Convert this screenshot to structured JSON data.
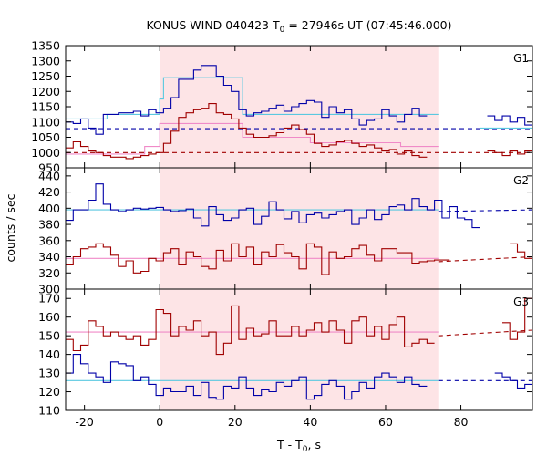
{
  "chart_data": {
    "type": "line",
    "title": "KONUS-WIND 040423 T",
    "title_sub": "0",
    "title_tail": " = 27946s UT (07:45:46.000)",
    "xlabel": "T - T",
    "xlabel_sub": "0",
    "xlabel_tail": ", s",
    "ylabel": "counts / sec",
    "xlim": [
      -25,
      99
    ],
    "xticks": [
      -20,
      0,
      20,
      40,
      60,
      80
    ],
    "shaded_interval": [
      0,
      74
    ],
    "shade_color": "#fde4e6",
    "colors": {
      "blue_curve": "#0000a8",
      "red_curve": "#a00000",
      "blue_fit": "#5ac8e0",
      "red_fit": "#f08ac8"
    },
    "panels": [
      {
        "label": "G1",
        "ylim": [
          950,
          1350
        ],
        "yticks": [
          950,
          1000,
          1050,
          1100,
          1150,
          1200,
          1250,
          1300,
          1350
        ],
        "series": [
          {
            "color": "blue",
            "bin_start": -25,
            "bin_width": 2,
            "values": [
              1100,
              1095,
              1110,
              1080,
              1060,
              1125,
              1125,
              1130,
              1130,
              1135,
              1120,
              1140,
              1130,
              1145,
              1180,
              1240,
              1240,
              1270,
              1285,
              1285,
              1250,
              1220,
              1200,
              1140,
              1120,
              1130,
              1135,
              1145,
              1155,
              1135,
              1150,
              1160,
              1170,
              1165,
              1115,
              1150,
              1130,
              1140,
              1110,
              1090,
              1105,
              1110,
              1140,
              1120,
              1100,
              1125,
              1145,
              1120,
              null,
              null,
              null,
              null,
              null,
              null,
              null,
              null,
              1120,
              1105,
              1120,
              1100,
              1115,
              1090
            ]
          },
          {
            "color": "red",
            "bin_start": -25,
            "bin_width": 2,
            "values": [
              1015,
              1035,
              1020,
              1005,
              1000,
              990,
              985,
              985,
              980,
              985,
              990,
              995,
              1000,
              1030,
              1070,
              1115,
              1130,
              1140,
              1145,
              1160,
              1130,
              1125,
              1110,
              1080,
              1060,
              1050,
              1050,
              1055,
              1065,
              1080,
              1090,
              1075,
              1060,
              1030,
              1020,
              1025,
              1035,
              1040,
              1030,
              1020,
              1025,
              1015,
              1005,
              1010,
              995,
              1005,
              990,
              985,
              null,
              null,
              null,
              null,
              null,
              null,
              null,
              null,
              1005,
              1000,
              990,
              1005,
              995,
              1005
            ]
          }
        ],
        "fit_segments": [
          {
            "color": "blue_fit",
            "style": "solid",
            "points": [
              [
                -25,
                1110
              ],
              [
                -14,
                1110
              ],
              [
                -14,
                1125
              ],
              [
                0,
                1125
              ],
              [
                0,
                1175
              ],
              [
                1,
                1175
              ],
              [
                1,
                1245
              ],
              [
                22,
                1245
              ],
              [
                22,
                1125
              ],
              [
                74,
                1125
              ]
            ]
          },
          {
            "color": "red_fit",
            "style": "solid",
            "points": [
              [
                -25,
                995
              ],
              [
                -4,
                995
              ],
              [
                -4,
                1020
              ],
              [
                0,
                1020
              ],
              [
                0,
                1095
              ],
              [
                22,
                1095
              ],
              [
                22,
                1050
              ],
              [
                40,
                1050
              ],
              [
                40,
                1032
              ],
              [
                64,
                1032
              ],
              [
                64,
                1020
              ],
              [
                74,
                1020
              ]
            ]
          },
          {
            "color": "blue_curve",
            "style": "dashed",
            "points": [
              [
                -25,
                1078
              ],
              [
                99,
                1078
              ]
            ]
          },
          {
            "color": "red_curve",
            "style": "dashed",
            "points": [
              [
                -25,
                1000
              ],
              [
                99,
                1000
              ]
            ]
          },
          {
            "color": "blue_fit",
            "style": "solid",
            "points": [
              [
                85,
                1080
              ],
              [
                99,
                1080
              ]
            ]
          }
        ]
      },
      {
        "label": "G2",
        "ylim": [
          300,
          450
        ],
        "yticks": [
          300,
          320,
          340,
          360,
          380,
          400,
          420,
          440
        ],
        "series": [
          {
            "color": "blue",
            "bin_start": -25,
            "bin_width": 2,
            "values": [
              385,
              398,
              398,
              410,
              430,
              405,
              398,
              396,
              398,
              400,
              399,
              400,
              401,
              398,
              396,
              397,
              399,
              388,
              378,
              402,
              392,
              385,
              388,
              398,
              400,
              380,
              390,
              408,
              398,
              387,
              396,
              382,
              392,
              394,
              388,
              392,
              396,
              398,
              380,
              388,
              398,
              386,
              392,
              402,
              404,
              398,
              412,
              402,
              398,
              410,
              388,
              402,
              388,
              386,
              376,
              null,
              null,
              null,
              null,
              null,
              null,
              null
            ]
          },
          {
            "color": "red",
            "bin_start": -25,
            "bin_width": 2,
            "values": [
              330,
              340,
              350,
              352,
              356,
              352,
              342,
              328,
              335,
              320,
              322,
              338,
              335,
              345,
              350,
              330,
              346,
              340,
              328,
              325,
              348,
              335,
              356,
              340,
              352,
              330,
              346,
              340,
              355,
              345,
              340,
              325,
              356,
              352,
              318,
              346,
              338,
              340,
              350,
              354,
              342,
              335,
              350,
              350,
              345,
              345,
              332,
              334,
              335,
              336,
              336,
              null,
              null,
              null,
              null,
              null,
              null,
              null,
              null,
              356,
              346,
              338
            ]
          }
        ],
        "fit_segments": [
          {
            "color": "blue_fit",
            "style": "solid",
            "points": [
              [
                -25,
                398
              ],
              [
                74,
                398
              ]
            ]
          },
          {
            "color": "red_fit",
            "style": "solid",
            "points": [
              [
                -25,
                338
              ],
              [
                74,
                338
              ]
            ]
          },
          {
            "color": "blue_curve",
            "style": "dashed",
            "points": [
              [
                74,
                396
              ],
              [
                99,
                398
              ]
            ]
          },
          {
            "color": "red_curve",
            "style": "dashed",
            "points": [
              [
                74,
                334
              ],
              [
                99,
                340
              ]
            ]
          }
        ]
      },
      {
        "label": "G3",
        "ylim": [
          110,
          175
        ],
        "yticks": [
          110,
          120,
          130,
          140,
          150,
          160,
          170
        ],
        "series": [
          {
            "color": "blue",
            "bin_start": -25,
            "bin_width": 2,
            "values": [
              130,
              140,
              135,
              130,
              128,
              125,
              136,
              135,
              134,
              126,
              128,
              124,
              118,
              122,
              120,
              120,
              123,
              118,
              125,
              117,
              116,
              123,
              122,
              128,
              122,
              118,
              121,
              120,
              125,
              123,
              126,
              128,
              116,
              118,
              124,
              126,
              123,
              116,
              120,
              125,
              122,
              128,
              130,
              128,
              125,
              128,
              124,
              123,
              null,
              null,
              null,
              null,
              null,
              null,
              null,
              null,
              null,
              130,
              128,
              126,
              122,
              124
            ]
          },
          {
            "color": "red",
            "bin_start": -25,
            "bin_width": 2,
            "values": [
              148,
              142,
              145,
              158,
              155,
              150,
              152,
              150,
              148,
              150,
              145,
              148,
              164,
              162,
              150,
              155,
              153,
              158,
              150,
              152,
              140,
              146,
              166,
              148,
              154,
              150,
              151,
              158,
              150,
              150,
              155,
              150,
              153,
              157,
              152,
              158,
              153,
              146,
              158,
              160,
              150,
              155,
              148,
              156,
              160,
              144,
              146,
              148,
              146,
              null,
              null,
              null,
              null,
              null,
              null,
              null,
              null,
              null,
              157,
              148,
              152,
              170
            ]
          }
        ],
        "fit_segments": [
          {
            "color": "blue_fit",
            "style": "solid",
            "points": [
              [
                -25,
                126
              ],
              [
                74,
                126
              ]
            ]
          },
          {
            "color": "red_fit",
            "style": "solid",
            "points": [
              [
                -25,
                152
              ],
              [
                74,
                152
              ]
            ]
          },
          {
            "color": "blue_curve",
            "style": "dashed",
            "points": [
              [
                74,
                126
              ],
              [
                99,
                126
              ]
            ]
          },
          {
            "color": "red_curve",
            "style": "dashed",
            "points": [
              [
                74,
                150
              ],
              [
                99,
                153
              ]
            ]
          }
        ]
      }
    ]
  }
}
